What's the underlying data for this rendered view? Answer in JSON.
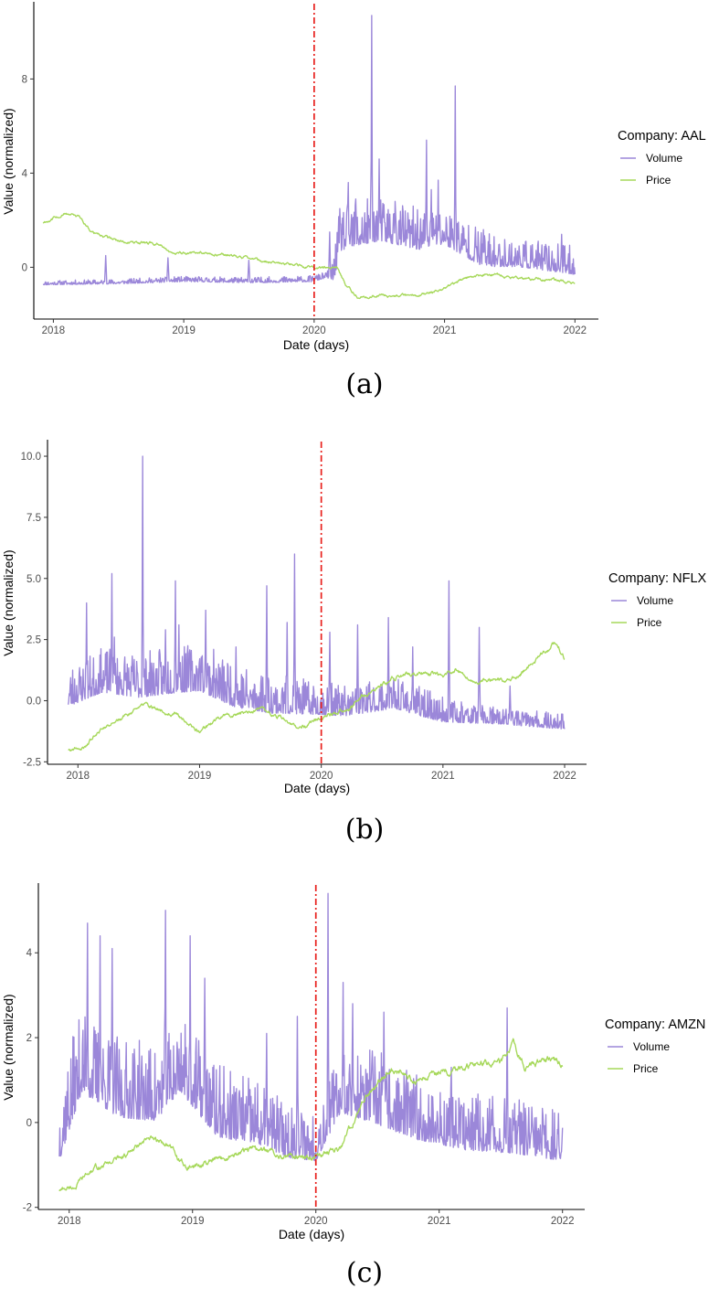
{
  "colors": {
    "volume": "#9b87d9",
    "price": "#a6d85a",
    "event_line": "#e8201c"
  },
  "chart_data": [
    {
      "type": "line",
      "caption": "(a)",
      "company": "AAL",
      "legend_title": "Company: AAL",
      "xlabel": "Date (days)",
      "ylabel": "Value (normalized)",
      "xlim": [
        2017.85,
        2022.18
      ],
      "ylim": [
        -2.2,
        11.2
      ],
      "x_ticks": [
        2018,
        2019,
        2020,
        2021,
        2022
      ],
      "x_tick_labels": [
        "2018",
        "2019",
        "2020",
        "2021",
        "2022"
      ],
      "y_ticks": [
        0,
        4,
        8
      ],
      "y_tick_labels": [
        "0",
        "4",
        "8"
      ],
      "event_x": 2020.0,
      "seed": 11,
      "series": [
        {
          "name": "Volume",
          "color_key": "volume",
          "anchors": [
            [
              2017.92,
              -0.7
            ],
            [
              2018.5,
              -0.65
            ],
            [
              2019.0,
              -0.55
            ],
            [
              2019.5,
              -0.6
            ],
            [
              2019.98,
              -0.55
            ],
            [
              2020.15,
              -0.3
            ],
            [
              2020.2,
              1.2
            ],
            [
              2020.5,
              1.6
            ],
            [
              2020.8,
              1.2
            ],
            [
              2021.0,
              1.4
            ],
            [
              2021.3,
              0.4
            ],
            [
              2021.6,
              0.3
            ],
            [
              2022.0,
              0.0
            ]
          ],
          "noise": [
            [
              2017.92,
              0.08
            ],
            [
              2020.1,
              0.12
            ],
            [
              2020.2,
              0.9
            ],
            [
              2021.2,
              0.75
            ],
            [
              2021.5,
              0.55
            ],
            [
              2022.0,
              0.55
            ]
          ],
          "spikes": [
            [
              2018.4,
              0.5
            ],
            [
              2018.88,
              0.4
            ],
            [
              2019.5,
              0.3
            ],
            [
              2020.12,
              1.5
            ],
            [
              2020.26,
              3.6
            ],
            [
              2020.32,
              2.9
            ],
            [
              2020.44,
              10.7
            ],
            [
              2020.5,
              4.6
            ],
            [
              2020.62,
              2.8
            ],
            [
              2020.86,
              5.4
            ],
            [
              2020.9,
              3.3
            ],
            [
              2020.95,
              3.7
            ],
            [
              2021.08,
              7.7
            ],
            [
              2021.3,
              1.6
            ],
            [
              2021.9,
              1.4
            ]
          ]
        },
        {
          "name": "Price",
          "color_key": "price",
          "anchors": [
            [
              2017.92,
              1.9
            ],
            [
              2018.1,
              2.3
            ],
            [
              2018.2,
              2.1
            ],
            [
              2018.3,
              1.5
            ],
            [
              2018.5,
              1.1
            ],
            [
              2018.8,
              1.0
            ],
            [
              2018.9,
              0.6
            ],
            [
              2019.2,
              0.6
            ],
            [
              2019.5,
              0.4
            ],
            [
              2019.7,
              0.15
            ],
            [
              2020.0,
              0.0
            ],
            [
              2020.17,
              0.0
            ],
            [
              2020.25,
              -0.85
            ],
            [
              2020.35,
              -1.35
            ],
            [
              2020.5,
              -1.2
            ],
            [
              2020.8,
              -1.2
            ],
            [
              2021.0,
              -0.9
            ],
            [
              2021.2,
              -0.4
            ],
            [
              2021.4,
              -0.3
            ],
            [
              2021.6,
              -0.5
            ],
            [
              2021.8,
              -0.5
            ],
            [
              2022.0,
              -0.7
            ]
          ],
          "noise": [
            [
              2017.92,
              0.08
            ],
            [
              2022.0,
              0.08
            ]
          ],
          "spikes": []
        }
      ]
    },
    {
      "type": "line",
      "caption": "(b)",
      "company": "NFLX",
      "legend_title": "Company: NFLX",
      "xlabel": "Date (days)",
      "ylabel": "Value (normalized)",
      "xlim": [
        2017.75,
        2022.18
      ],
      "ylim": [
        -2.6,
        10.6
      ],
      "x_ticks": [
        2018,
        2019,
        2020,
        2021,
        2022
      ],
      "x_tick_labels": [
        "2018",
        "2019",
        "2020",
        "2021",
        "2022"
      ],
      "y_ticks": [
        -2.5,
        0.0,
        2.5,
        5.0,
        7.5,
        10.0
      ],
      "y_tick_labels": [
        "-2.5",
        "0.0",
        "2.5",
        "5.0",
        "7.5",
        "10.0"
      ],
      "event_x": 2020.0,
      "seed": 23,
      "series": [
        {
          "name": "Volume",
          "color_key": "volume",
          "anchors": [
            [
              2017.92,
              0.2
            ],
            [
              2018.2,
              0.8
            ],
            [
              2018.5,
              0.6
            ],
            [
              2018.8,
              0.8
            ],
            [
              2019.0,
              0.9
            ],
            [
              2019.3,
              0.2
            ],
            [
              2019.6,
              -0.1
            ],
            [
              2019.9,
              -0.2
            ],
            [
              2020.2,
              -0.3
            ],
            [
              2020.6,
              0.0
            ],
            [
              2021.0,
              -0.6
            ],
            [
              2021.5,
              -0.8
            ],
            [
              2022.0,
              -1.0
            ]
          ],
          "noise": [
            [
              2017.92,
              0.8
            ],
            [
              2019.2,
              0.9
            ],
            [
              2020.0,
              0.6
            ],
            [
              2020.8,
              0.55
            ],
            [
              2021.5,
              0.3
            ],
            [
              2022.0,
              0.3
            ]
          ],
          "spikes": [
            [
              2018.07,
              4.0
            ],
            [
              2018.28,
              5.2
            ],
            [
              2018.3,
              2.6
            ],
            [
              2018.53,
              10.0
            ],
            [
              2018.72,
              2.9
            ],
            [
              2018.8,
              4.9
            ],
            [
              2018.83,
              3.1
            ],
            [
              2019.05,
              3.7
            ],
            [
              2019.3,
              2.2
            ],
            [
              2019.55,
              4.7
            ],
            [
              2019.72,
              3.2
            ],
            [
              2019.78,
              6.0
            ],
            [
              2020.07,
              2.8
            ],
            [
              2020.3,
              3.1
            ],
            [
              2020.55,
              3.4
            ],
            [
              2020.75,
              2.2
            ],
            [
              2021.05,
              4.9
            ],
            [
              2021.3,
              3.0
            ],
            [
              2021.55,
              0.6
            ]
          ]
        },
        {
          "name": "Price",
          "color_key": "price",
          "anchors": [
            [
              2017.92,
              -2.0
            ],
            [
              2018.05,
              -1.9
            ],
            [
              2018.2,
              -1.1
            ],
            [
              2018.4,
              -0.6
            ],
            [
              2018.55,
              -0.2
            ],
            [
              2018.7,
              -0.4
            ],
            [
              2018.8,
              -0.5
            ],
            [
              2019.0,
              -1.3
            ],
            [
              2019.2,
              -0.6
            ],
            [
              2019.5,
              -0.4
            ],
            [
              2019.7,
              -0.7
            ],
            [
              2019.8,
              -1.2
            ],
            [
              2020.0,
              -0.7
            ],
            [
              2020.2,
              -0.4
            ],
            [
              2020.4,
              0.4
            ],
            [
              2020.6,
              0.9
            ],
            [
              2020.8,
              1.2
            ],
            [
              2021.0,
              1.0
            ],
            [
              2021.1,
              1.3
            ],
            [
              2021.3,
              0.8
            ],
            [
              2021.6,
              0.9
            ],
            [
              2021.8,
              1.8
            ],
            [
              2021.92,
              2.4
            ],
            [
              2022.0,
              1.8
            ]
          ],
          "noise": [
            [
              2017.92,
              0.1
            ],
            [
              2022.0,
              0.12
            ]
          ],
          "spikes": []
        }
      ]
    },
    {
      "type": "line",
      "caption": "(c)",
      "company": "AMZN",
      "legend_title": "Company: AMZN",
      "xlabel": "Date (days)",
      "ylabel": "Value (normalized)",
      "xlim": [
        2017.75,
        2022.18
      ],
      "ylim": [
        -2.05,
        5.6
      ],
      "x_ticks": [
        2018,
        2019,
        2020,
        2021,
        2022
      ],
      "x_tick_labels": [
        "2018",
        "2019",
        "2020",
        "2021",
        "2022"
      ],
      "y_ticks": [
        -2,
        0,
        2,
        4
      ],
      "y_tick_labels": [
        "-2",
        "0",
        "2",
        "4"
      ],
      "event_x": 2020.0,
      "seed": 37,
      "series": [
        {
          "name": "Volume",
          "color_key": "volume",
          "anchors": [
            [
              2017.92,
              -0.4
            ],
            [
              2018.1,
              1.2
            ],
            [
              2018.4,
              0.6
            ],
            [
              2018.7,
              0.5
            ],
            [
              2018.9,
              1.2
            ],
            [
              2019.2,
              0.1
            ],
            [
              2019.5,
              -0.1
            ],
            [
              2019.8,
              -0.5
            ],
            [
              2020.0,
              -0.6
            ],
            [
              2020.2,
              0.6
            ],
            [
              2020.5,
              0.4
            ],
            [
              2020.8,
              0.0
            ],
            [
              2021.2,
              -0.3
            ],
            [
              2021.6,
              -0.4
            ],
            [
              2022.0,
              -0.6
            ]
          ],
          "noise": [
            [
              2017.92,
              0.9
            ],
            [
              2019.2,
              0.8
            ],
            [
              2020.0,
              0.55
            ],
            [
              2020.5,
              0.8
            ],
            [
              2021.0,
              0.65
            ],
            [
              2022.0,
              0.55
            ]
          ],
          "spikes": [
            [
              2018.15,
              4.7
            ],
            [
              2018.25,
              4.4
            ],
            [
              2018.35,
              4.1
            ],
            [
              2018.78,
              5.0
            ],
            [
              2018.98,
              4.4
            ],
            [
              2019.1,
              3.4
            ],
            [
              2019.6,
              2.1
            ],
            [
              2019.85,
              2.5
            ],
            [
              2020.1,
              5.4
            ],
            [
              2020.22,
              3.3
            ],
            [
              2020.3,
              2.8
            ],
            [
              2020.55,
              2.6
            ],
            [
              2021.1,
              1.3
            ],
            [
              2021.55,
              2.7
            ]
          ]
        },
        {
          "name": "Price",
          "color_key": "price",
          "anchors": [
            [
              2017.92,
              -1.6
            ],
            [
              2018.05,
              -1.5
            ],
            [
              2018.2,
              -1.1
            ],
            [
              2018.5,
              -0.7
            ],
            [
              2018.65,
              -0.4
            ],
            [
              2018.8,
              -0.5
            ],
            [
              2018.95,
              -1.1
            ],
            [
              2019.2,
              -0.9
            ],
            [
              2019.5,
              -0.6
            ],
            [
              2019.8,
              -0.8
            ],
            [
              2020.0,
              -0.8
            ],
            [
              2020.2,
              -0.6
            ],
            [
              2020.4,
              0.6
            ],
            [
              2020.6,
              1.3
            ],
            [
              2020.8,
              1.0
            ],
            [
              2021.0,
              1.2
            ],
            [
              2021.3,
              1.4
            ],
            [
              2021.5,
              1.4
            ],
            [
              2021.6,
              1.8
            ],
            [
              2021.7,
              1.3
            ],
            [
              2021.85,
              1.5
            ],
            [
              2022.0,
              1.4
            ]
          ],
          "noise": [
            [
              2017.92,
              0.08
            ],
            [
              2022.0,
              0.1
            ]
          ],
          "spikes": []
        }
      ]
    }
  ]
}
